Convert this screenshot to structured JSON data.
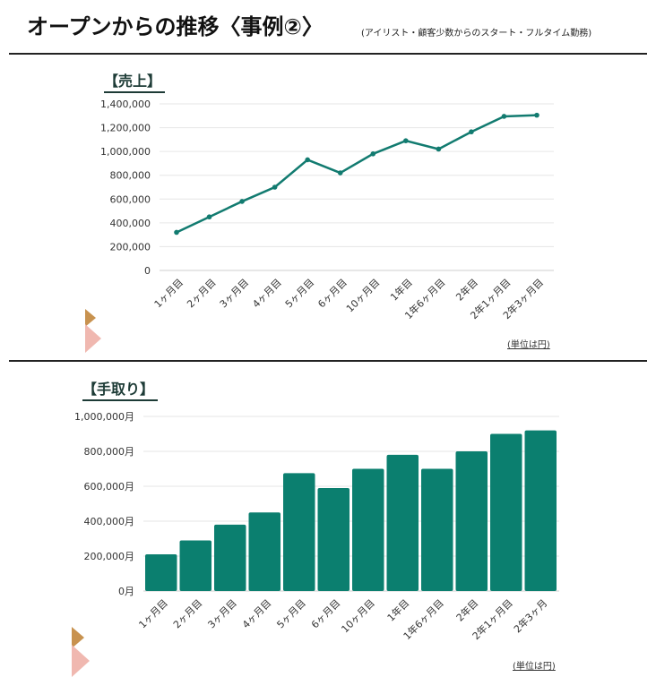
{
  "header": {
    "title": "オープンからの推移〈事例②〉",
    "subtitle": "(アイリスト・顧客少数からのスタート・フルタイム勤務)"
  },
  "colors": {
    "series": "#127b70",
    "bar": "#0b7f6f",
    "grid": "#e6e6e6"
  },
  "chart_data": [
    {
      "type": "line",
      "title": "【売上】",
      "unit_note": "(単位は円)",
      "categories": [
        "1ヶ月目",
        "2ヶ月目",
        "3ヶ月目",
        "4ヶ月目",
        "5ヶ月目",
        "6ヶ月目",
        "10ヶ月目",
        "1年目",
        "1年6ヶ月目",
        "2年目",
        "2年1ヶ月目",
        "2年3ヶ月目"
      ],
      "values": [
        320000,
        450000,
        580000,
        700000,
        930000,
        820000,
        980000,
        1090000,
        1020000,
        1165000,
        1295000,
        1305000
      ],
      "ylim": [
        0,
        1400000
      ],
      "yticks": [
        "0",
        "200,000",
        "400,000",
        "600,000",
        "800,000",
        "1,000,000",
        "1,200,000",
        "1,400,000"
      ],
      "grid": true
    },
    {
      "type": "bar",
      "title": "【手取り】",
      "unit_note": "(単位は円)",
      "categories": [
        "1ヶ月目",
        "2ヶ月目",
        "3ヶ月目",
        "4ヶ月目",
        "5ヶ月目",
        "6ヶ月目",
        "10ヶ月目",
        "1年目",
        "1年6ヶ月目",
        "2年目",
        "2年1ヶ月目",
        "2年3ヶ月"
      ],
      "values": [
        210000,
        290000,
        380000,
        450000,
        675000,
        590000,
        700000,
        780000,
        700000,
        800000,
        900000,
        920000
      ],
      "ylim": [
        0,
        1000000
      ],
      "yticks": [
        "0月",
        "200,000月",
        "400,000月",
        "600,000月",
        "800,000月",
        "1,000,000月"
      ],
      "grid": true
    }
  ]
}
